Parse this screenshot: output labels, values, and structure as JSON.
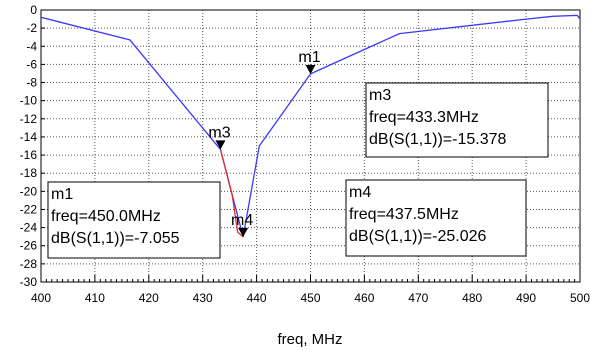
{
  "chart_data": {
    "type": "line",
    "xlabel": "freq, MHz",
    "ylabel": "",
    "xlim": [
      400,
      500
    ],
    "ylim": [
      -30,
      0
    ],
    "x_ticks": [
      400,
      410,
      420,
      430,
      440,
      450,
      460,
      470,
      480,
      490,
      500
    ],
    "y_ticks": [
      0,
      -2,
      -4,
      -6,
      -8,
      -10,
      -12,
      -14,
      -16,
      -18,
      -20,
      -22,
      -24,
      -26,
      -28,
      -30
    ],
    "grid": true,
    "colors": {
      "trace_primary": "#3a3aff",
      "trace_secondary": "#e03030",
      "axis": "#000000",
      "grid": "#555555",
      "marker": "#000000"
    },
    "series": [
      {
        "color": "#3a3aff",
        "x": [
          400,
          416.5,
          433.3,
          437.5,
          440.5,
          450,
          466.5,
          490,
          495,
          499.5,
          500
        ],
        "y": [
          -0.8,
          -3.3,
          -15.4,
          -25.0,
          -15.0,
          -7.05,
          -2.6,
          -1.0,
          -0.7,
          -0.6,
          -1.0
        ]
      },
      {
        "color": "#e03030",
        "x": [
          433.3,
          435.5,
          436.5,
          437.5
        ],
        "y": [
          -15.4,
          -20.5,
          -24.5,
          -25.0
        ]
      },
      {
        "color": "#e03030",
        "x": [
          500,
          500
        ],
        "y": [
          -1.0,
          -23.5
        ]
      }
    ],
    "markers": [
      {
        "name": "m1",
        "x": 450.0,
        "y": -7.055
      },
      {
        "name": "m3",
        "x": 433.3,
        "y": -15.378
      },
      {
        "name": "m4",
        "x": 437.5,
        "y": -25.026
      }
    ],
    "readouts": [
      {
        "id": "m3",
        "lines": [
          "m3",
          "freq=433.3MHz",
          "dB(S(1,1))=-15.378"
        ]
      },
      {
        "id": "m1",
        "lines": [
          "m1",
          "freq=450.0MHz",
          "dB(S(1,1))=-7.055"
        ]
      },
      {
        "id": "m4",
        "lines": [
          "m4",
          "freq=437.5MHz",
          "dB(S(1,1))=-25.026"
        ]
      }
    ]
  }
}
